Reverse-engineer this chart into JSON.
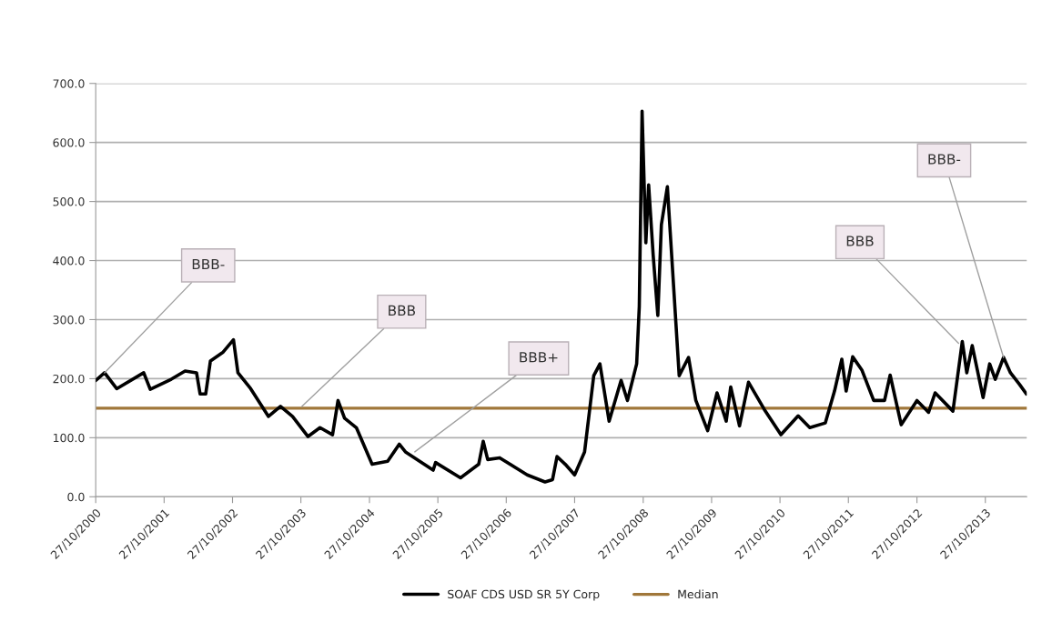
{
  "chart_data": {
    "type": "line",
    "x": [
      "2000-10-27",
      "2000-12-13",
      "2001-02-16",
      "2001-07-10",
      "2001-08-14",
      "2001-12-04",
      "2002-02-16",
      "2002-04-18",
      "2002-05-07",
      "2002-06-06",
      "2002-07-01",
      "2002-09-07",
      "2002-11-01",
      "2002-11-25",
      "2003-02-01",
      "2003-05-07",
      "2003-07-10",
      "2003-09-12",
      "2003-12-04",
      "2004-02-06",
      "2004-04-13",
      "2004-05-12",
      "2004-06-16",
      "2004-08-18",
      "2004-11-10",
      "2005-02-01",
      "2005-04-04",
      "2005-05-07",
      "2005-10-02",
      "2005-10-15",
      "2006-02-25",
      "2006-06-02",
      "2006-06-26",
      "2006-07-20",
      "2006-09-22",
      "2007-02-16",
      "2007-05-22",
      "2007-07-01",
      "2007-07-25",
      "2007-09-07",
      "2007-10-27",
      "2007-12-19",
      "2008-02-06",
      "2008-03-10",
      "2008-04-28",
      "2008-07-01",
      "2008-08-04",
      "2008-09-22",
      "2008-10-06",
      "2008-10-21",
      "2008-11-10",
      "2008-11-25",
      "2008-12-19",
      "2009-01-13",
      "2009-02-01",
      "2009-03-05",
      "2009-05-07",
      "2009-06-26",
      "2009-08-04",
      "2009-10-06",
      "2009-11-25",
      "2010-01-13",
      "2010-02-06",
      "2010-03-25",
      "2010-05-12",
      "2010-08-04",
      "2010-11-01",
      "2011-02-01",
      "2011-04-04",
      "2011-06-26",
      "2011-08-14",
      "2011-09-22",
      "2011-10-15",
      "2011-11-19",
      "2012-01-08",
      "2012-03-10",
      "2012-05-07",
      "2012-06-06",
      "2012-08-04",
      "2012-10-27",
      "2012-12-28",
      "2013-02-01",
      "2013-05-07",
      "2013-06-26",
      "2013-07-20",
      "2013-08-18",
      "2013-10-15",
      "2013-11-19",
      "2013-12-19",
      "2014-02-01",
      "2014-03-10",
      "2014-04-28",
      "2014-06-03"
    ],
    "series": [
      {
        "name": "SOAF CDS USD SR 5Y Corp",
        "color": "#000000",
        "values": [
          197,
          210,
          183,
          210,
          182,
          199,
          213,
          210,
          174,
          174,
          230,
          245,
          266,
          210,
          183,
          136,
          153,
          136,
          102,
          117,
          105,
          163,
          133,
          117,
          55,
          60,
          89,
          76,
          45,
          58,
          32,
          55,
          94,
          63,
          66,
          37,
          25,
          29,
          68,
          55,
          37,
          76,
          205,
          225,
          128,
          197,
          163,
          225,
          322,
          653,
          430,
          528,
          410,
          307,
          461,
          525,
          205,
          236,
          163,
          112,
          176,
          128,
          186,
          120,
          194,
          148,
          105,
          137,
          117,
          125,
          179,
          233,
          179,
          237,
          214,
          163,
          163,
          206,
          122,
          163,
          143,
          176,
          145,
          263,
          210,
          256,
          168,
          225,
          199,
          236,
          210,
          190,
          174
        ]
      }
    ],
    "ref_lines": [
      {
        "axis": "y",
        "value": 150,
        "label": "Median",
        "color": "#a0773a"
      }
    ],
    "annotations": [
      {
        "text": "BBB-",
        "x": "2000-12-13",
        "y": 210
      },
      {
        "text": "BBB",
        "x": "2003-11-01",
        "y": 153
      },
      {
        "text": "BBB+",
        "x": "2005-06-26",
        "y": 76
      },
      {
        "text": "BBB",
        "x": "2013-06-06",
        "y": 260
      },
      {
        "text": "BBB-",
        "x": "2014-02-01",
        "y": 236
      }
    ],
    "xlim": [
      "2000-10-27",
      "2014-06-05"
    ],
    "xticks": [
      {
        "value": "2000-10-27",
        "label": "27/10/2000"
      },
      {
        "value": "2001-10-27",
        "label": "27/10/2001"
      },
      {
        "value": "2002-10-27",
        "label": "27/10/2002"
      },
      {
        "value": "2003-10-27",
        "label": "27/10/2003"
      },
      {
        "value": "2004-10-27",
        "label": "27/10/2004"
      },
      {
        "value": "2005-10-27",
        "label": "27/10/2005"
      },
      {
        "value": "2006-10-27",
        "label": "27/10/2006"
      },
      {
        "value": "2007-10-27",
        "label": "27/10/2007"
      },
      {
        "value": "2008-10-27",
        "label": "27/10/2008"
      },
      {
        "value": "2009-10-27",
        "label": "27/10/2009"
      },
      {
        "value": "2010-10-27",
        "label": "27/10/2010"
      },
      {
        "value": "2011-10-27",
        "label": "27/10/2011"
      },
      {
        "value": "2012-10-27",
        "label": "27/10/2012"
      },
      {
        "value": "2013-10-27",
        "label": "27/10/2013"
      }
    ],
    "ylim": [
      0,
      700
    ],
    "yticks": [
      {
        "value": 0,
        "label": "0.0"
      },
      {
        "value": 100,
        "label": "100.0"
      },
      {
        "value": 200,
        "label": "200.0"
      },
      {
        "value": 300,
        "label": "300.0"
      },
      {
        "value": 400,
        "label": "400.0"
      },
      {
        "value": 500,
        "label": "500.0"
      },
      {
        "value": 600,
        "label": "600.0"
      },
      {
        "value": 700,
        "label": "700.0"
      }
    ],
    "grid": "y",
    "legend": "bottom",
    "marker": "none",
    "line_style": "solid"
  }
}
